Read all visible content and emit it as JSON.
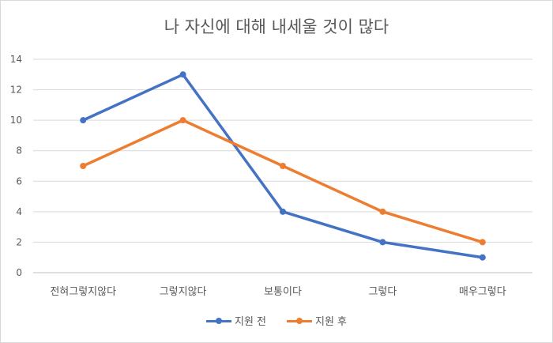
{
  "chart_data": {
    "type": "line",
    "title": "나 자신에 대해 내세울 것이 많다",
    "categories": [
      "전혀그렇지않다",
      "그렇지않다",
      "보통이다",
      "그렇다",
      "매우그렇다"
    ],
    "series": [
      {
        "name": "지원 전",
        "values": [
          10,
          13,
          4,
          2,
          1
        ],
        "color": "#4472c4"
      },
      {
        "name": "지원 후",
        "values": [
          7,
          10,
          7,
          4,
          2
        ],
        "color": "#ed7d31"
      }
    ],
    "ylim": [
      0,
      14
    ],
    "yticks": [
      0,
      2,
      4,
      6,
      8,
      10,
      12,
      14
    ],
    "grid": true,
    "legend": "bottom"
  }
}
